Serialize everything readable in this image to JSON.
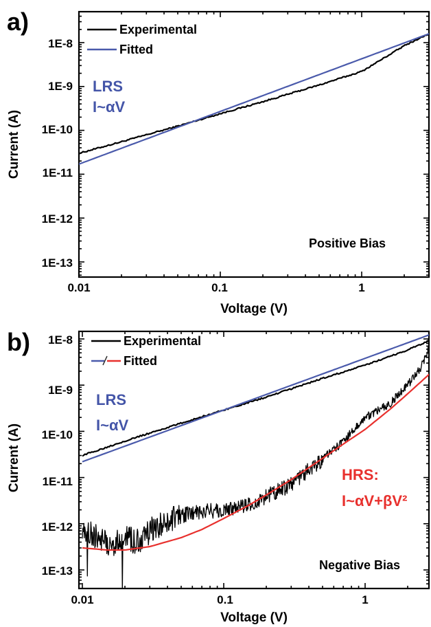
{
  "chart_data": [
    {
      "panel_label": "a)",
      "type": "line",
      "x_scale": "log",
      "y_scale": "log",
      "xlim": [
        0.01,
        3
      ],
      "ylim": [
        5e-14,
        3e-08
      ],
      "xlabel": "Voltage (V)",
      "ylabel": "Current (A)",
      "x_ticks": [
        {
          "value": 0.01,
          "label": "0.01"
        },
        {
          "value": 0.1,
          "label": "0.1"
        },
        {
          "value": 1,
          "label": "1"
        }
      ],
      "y_ticks": [
        {
          "value": 1e-13,
          "label": "1E-13"
        },
        {
          "value": 1e-12,
          "label": "1E-12"
        },
        {
          "value": 1e-11,
          "label": "1E-11"
        },
        {
          "value": 1e-10,
          "label": "1E-10"
        },
        {
          "value": 1e-09,
          "label": "1E-9"
        },
        {
          "value": 1e-08,
          "label": "1E-8"
        }
      ],
      "legend": {
        "position": "top-left",
        "entries": [
          {
            "name": "Experimental",
            "color": "#000000"
          },
          {
            "name": "Fitted",
            "color": "#4a5aab"
          }
        ]
      },
      "series": [
        {
          "name": "Experimental",
          "color": "#000000",
          "x": [
            0.01,
            0.02,
            0.05,
            0.1,
            0.2,
            0.5,
            1,
            2,
            3
          ],
          "y": [
            3e-11,
            5.5e-11,
            1.25e-10,
            2.4e-10,
            4.5e-10,
            1.08e-09,
            2.2e-09,
            8.5e-09,
            1.6e-08
          ]
        },
        {
          "name": "Fitted",
          "color": "#4a5aab",
          "x": [
            0.01,
            3
          ],
          "y": [
            1.7e-11,
            1.6e-08
          ]
        }
      ],
      "annotations": [
        {
          "text": "LRS",
          "color": "#4455a8"
        },
        {
          "text": "I~αV",
          "color": "#4455a8"
        },
        {
          "text": "Positive Bias",
          "color": "#000000"
        }
      ]
    },
    {
      "panel_label": "b)",
      "type": "line",
      "x_scale": "log",
      "y_scale": "log",
      "xlim": [
        0.01,
        3
      ],
      "ylim": [
        5e-14,
        2e-08
      ],
      "xlabel": "Voltage (V)",
      "ylabel": "Current (A)",
      "x_ticks": [
        {
          "value": 0.01,
          "label": "0.01"
        },
        {
          "value": 0.1,
          "label": "0.1"
        },
        {
          "value": 1,
          "label": "1"
        }
      ],
      "y_ticks": [
        {
          "value": 1e-13,
          "label": "1E-13"
        },
        {
          "value": 1e-12,
          "label": "1E-12"
        },
        {
          "value": 1e-11,
          "label": "1E-11"
        },
        {
          "value": 1e-10,
          "label": "1E-10"
        },
        {
          "value": 1e-09,
          "label": "1E-9"
        },
        {
          "value": 1e-08,
          "label": "1E-8"
        }
      ],
      "legend": {
        "position": "top-left",
        "entries": [
          {
            "name": "Experimental",
            "color": "#000000"
          },
          {
            "name": "Fitted",
            "color": "#4a5aab",
            "color2": "#e8302d"
          }
        ]
      },
      "series": [
        {
          "name": "Experimental",
          "color": "#000000",
          "x": [
            0.01,
            0.02,
            0.05,
            0.1,
            0.2,
            0.5,
            1,
            2,
            2.8,
            3
          ],
          "y": [
            3e-11,
            6.2e-11,
            1.5e-10,
            2.9e-10,
            5.5e-10,
            1.4e-09,
            2.7e-09,
            5.8e-09,
            9e-09,
            1.5e-08
          ]
        },
        {
          "name": "Fitted",
          "color": "#4a5aab",
          "x": [
            0.01,
            3
          ],
          "y": [
            2.2e-11,
            1.3e-08
          ]
        },
        {
          "name": "Experimental",
          "color": "#000000",
          "x": [
            0.01,
            0.013,
            0.016,
            0.02,
            0.025,
            0.03,
            0.04,
            0.05,
            0.07,
            0.1,
            0.15,
            0.2,
            0.3,
            0.4,
            0.5,
            0.7,
            1,
            1.5,
            2,
            2.5,
            2.8,
            3
          ],
          "y": [
            9e-13,
            5e-13,
            3.5e-13,
            5e-13,
            4e-13,
            7e-13,
            1.1e-12,
            1.5e-12,
            1.8e-12,
            2e-12,
            2.5e-12,
            4e-12,
            7e-12,
            1.5e-11,
            2.5e-11,
            6e-11,
            2e-10,
            4e-10,
            1e-09,
            2.5e-09,
            6e-09,
            1.5e-08
          ]
        },
        {
          "name": "Fitted",
          "color": "#e8302d",
          "x": [
            0.01,
            0.015,
            0.02,
            0.03,
            0.05,
            0.07,
            0.1,
            0.15,
            0.2,
            0.3,
            0.5,
            0.7,
            1,
            1.5,
            2,
            3
          ],
          "y": [
            3e-13,
            2.7e-13,
            2.7e-13,
            3.2e-13,
            5e-13,
            7.5e-13,
            1.3e-12,
            2.5e-12,
            4.2e-12,
            9e-12,
            2.6e-11,
            5.3e-11,
            1.1e-10,
            3e-10,
            6.5e-10,
            2e-09
          ]
        }
      ],
      "annotations": [
        {
          "text": "LRS",
          "color": "#4455a8"
        },
        {
          "text": "I~αV",
          "color": "#4455a8"
        },
        {
          "text": "HRS:",
          "color": "#e8302d"
        },
        {
          "text": "I~αV+βV²",
          "color": "#e8302d"
        },
        {
          "text": "Negative Bias",
          "color": "#000000"
        }
      ]
    }
  ]
}
